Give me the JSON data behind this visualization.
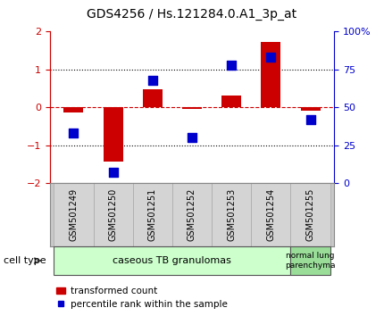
{
  "title": "GDS4256 / Hs.121284.0.A1_3p_at",
  "samples": [
    "GSM501249",
    "GSM501250",
    "GSM501251",
    "GSM501252",
    "GSM501253",
    "GSM501254",
    "GSM501255"
  ],
  "transformed_count": [
    -0.13,
    -1.42,
    0.47,
    -0.04,
    0.32,
    1.72,
    -0.08
  ],
  "percentile_rank": [
    33,
    7,
    68,
    30,
    78,
    83,
    42
  ],
  "ylim_left": [
    -2,
    2
  ],
  "ylim_right": [
    0,
    100
  ],
  "yticks_left": [
    -2,
    -1,
    0,
    1,
    2
  ],
  "yticks_right": [
    0,
    25,
    50,
    75,
    100
  ],
  "ytick_labels_right": [
    "0",
    "25",
    "50",
    "75",
    "100%"
  ],
  "bar_color": "#cc0000",
  "dot_color": "#0000cc",
  "zero_line_color": "#cc0000",
  "dotted_line_color": "#000000",
  "group1_label": "caseous TB granulomas",
  "group2_label": "normal lung\nparenchyma",
  "group1_color": "#ccffcc",
  "group2_color": "#99dd99",
  "cell_type_label": "cell type",
  "legend_bar_label": "transformed count",
  "legend_dot_label": "percentile rank within the sample",
  "bar_width": 0.5,
  "dot_size": 55,
  "background_color": "#ffffff",
  "plot_bg_color": "#ffffff",
  "tick_label_color_left": "#cc0000",
  "tick_label_color_right": "#0000cc",
  "title_fontsize": 10,
  "tick_fontsize": 8,
  "sample_label_fontsize": 7,
  "sample_area_color": "#c8c8c8",
  "sample_separator_color": "#ffffff",
  "group_border_color": "#555555"
}
